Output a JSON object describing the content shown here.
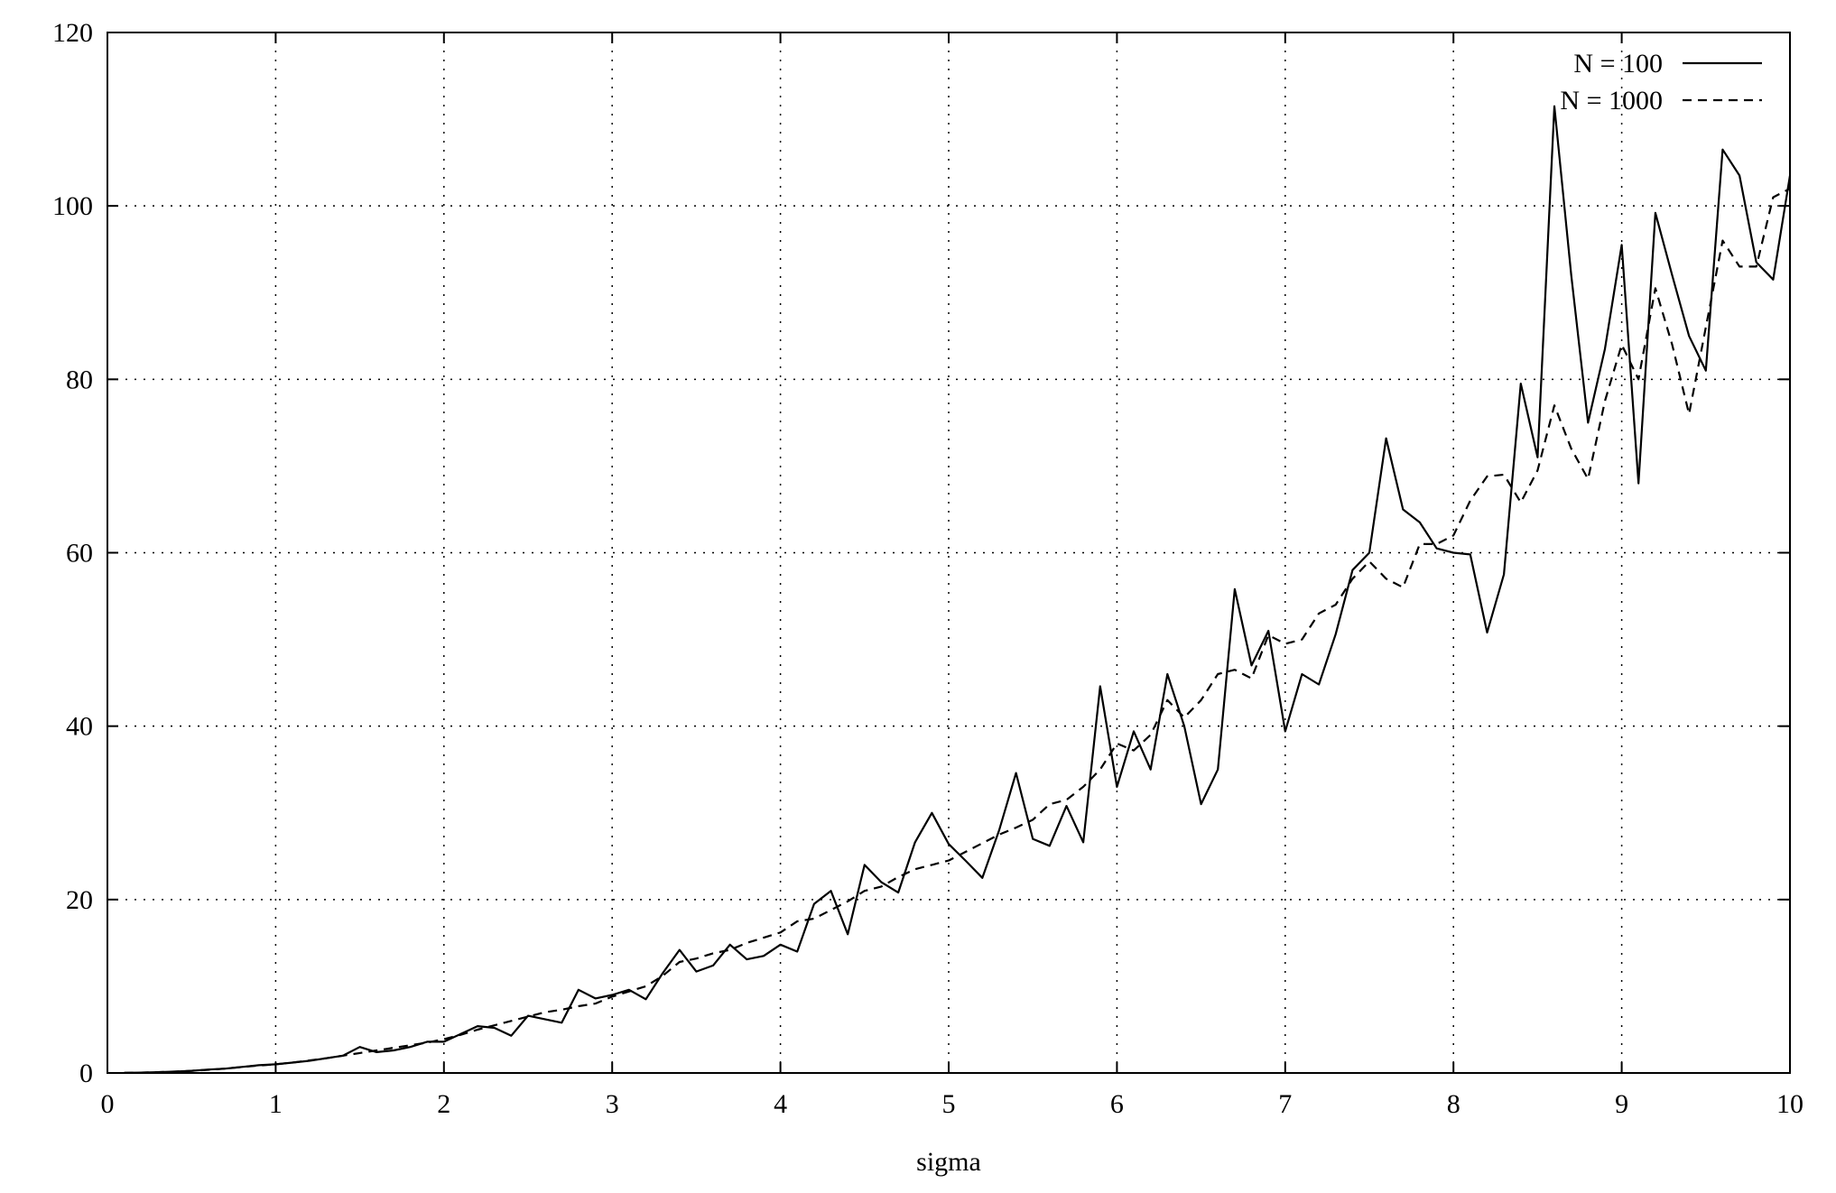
{
  "chart_data": {
    "type": "line",
    "title": "",
    "xlabel": "sigma",
    "ylabel": "",
    "xlim": [
      0,
      10
    ],
    "ylim": [
      0,
      120
    ],
    "xticks": [
      0,
      1,
      2,
      3,
      4,
      5,
      6,
      7,
      8,
      9,
      10
    ],
    "yticks": [
      0,
      20,
      40,
      60,
      80,
      100,
      120
    ],
    "grid": true,
    "legend_position": "top-right",
    "x": [
      0.1,
      0.2,
      0.3,
      0.4,
      0.5,
      0.6,
      0.7,
      0.8,
      0.9,
      1.0,
      1.1,
      1.2,
      1.3,
      1.4,
      1.5,
      1.6,
      1.7,
      1.8,
      1.9,
      2.0,
      2.1,
      2.2,
      2.3,
      2.4,
      2.5,
      2.6,
      2.7,
      2.8,
      2.9,
      3.0,
      3.1,
      3.2,
      3.3,
      3.4,
      3.5,
      3.6,
      3.7,
      3.8,
      3.9,
      4.0,
      4.1,
      4.2,
      4.3,
      4.4,
      4.5,
      4.6,
      4.7,
      4.8,
      4.9,
      5.0,
      5.1,
      5.2,
      5.3,
      5.4,
      5.5,
      5.6,
      5.7,
      5.8,
      5.9,
      6.0,
      6.1,
      6.2,
      6.3,
      6.4,
      6.5,
      6.6,
      6.7,
      6.8,
      6.9,
      7.0,
      7.1,
      7.2,
      7.3,
      7.4,
      7.5,
      7.6,
      7.7,
      7.8,
      7.9,
      8.0,
      8.1,
      8.2,
      8.3,
      8.4,
      8.5,
      8.6,
      8.7,
      8.8,
      8.9,
      9.0,
      9.1,
      9.2,
      9.3,
      9.4,
      9.5,
      9.6,
      9.7,
      9.8,
      9.9,
      10.0
    ],
    "series": [
      {
        "name": "N = 100",
        "style": "solid",
        "values": [
          0.01,
          0.04,
          0.09,
          0.16,
          0.25,
          0.4,
          0.5,
          0.7,
          0.9,
          1.0,
          1.2,
          1.4,
          1.7,
          2.0,
          3.0,
          2.4,
          2.6,
          3.0,
          3.6,
          3.6,
          4.5,
          5.4,
          5.2,
          4.3,
          6.6,
          6.2,
          5.8,
          9.6,
          8.6,
          9.0,
          9.6,
          8.5,
          11.5,
          14.2,
          11.7,
          12.4,
          14.8,
          13.1,
          13.5,
          14.8,
          14.0,
          19.5,
          21.0,
          16.0,
          24.0,
          22.0,
          20.8,
          26.6,
          30.0,
          26.4,
          24.5,
          22.5,
          28.0,
          34.6,
          27.0,
          26.2,
          30.8,
          26.6,
          44.6,
          33.0,
          39.4,
          35.0,
          46.0,
          40.0,
          31.0,
          35.0,
          55.8,
          47.0,
          51.0,
          39.4,
          46.0,
          44.8,
          50.6,
          58.0,
          60.0,
          73.2,
          65.0,
          63.5,
          60.5,
          60.0,
          59.8,
          50.8,
          57.5,
          79.5,
          71.0,
          111.5,
          92.0,
          75.0,
          83.5,
          95.5,
          68.0,
          99.2,
          92.0,
          85.0,
          81.0,
          106.5,
          103.5,
          93.5,
          91.5,
          103.5
        ]
      },
      {
        "name": "N = 1000",
        "style": "dashed",
        "values": [
          0.01,
          0.04,
          0.09,
          0.16,
          0.25,
          0.36,
          0.5,
          0.7,
          0.85,
          1.0,
          1.2,
          1.45,
          1.7,
          2.0,
          2.3,
          2.6,
          2.9,
          3.2,
          3.5,
          3.9,
          4.4,
          5.0,
          5.5,
          6.0,
          6.5,
          7.0,
          7.3,
          7.7,
          8.0,
          8.8,
          9.4,
          10.0,
          11.2,
          12.8,
          13.2,
          13.8,
          14.2,
          15.0,
          15.6,
          16.2,
          17.5,
          17.8,
          18.8,
          19.8,
          21.0,
          21.5,
          22.6,
          23.5,
          24.0,
          24.5,
          25.5,
          26.5,
          27.5,
          28.3,
          29.2,
          31.0,
          31.5,
          33.0,
          35.0,
          38.0,
          37.2,
          39.0,
          43.0,
          41.0,
          43.0,
          46.0,
          46.5,
          45.5,
          50.5,
          49.5,
          50.0,
          53.0,
          54.0,
          57.0,
          59.0,
          57.0,
          56.0,
          61.0,
          61.0,
          62.0,
          66.0,
          68.8,
          69.0,
          65.8,
          69.5,
          77.0,
          72.0,
          68.5,
          77.5,
          84.0,
          80.0,
          90.5,
          84.0,
          76.0,
          86.0,
          96.0,
          93.0,
          93.0,
          101.0,
          102.0
        ]
      }
    ]
  }
}
